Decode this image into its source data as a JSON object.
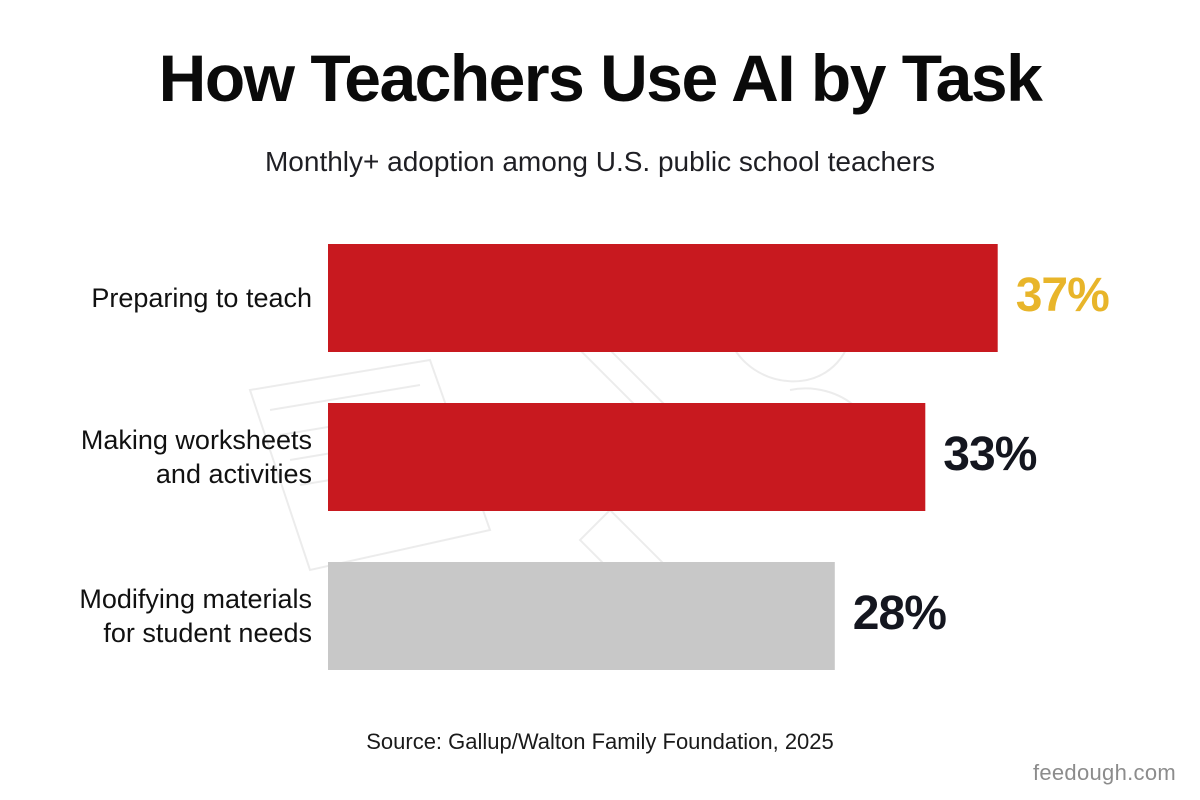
{
  "chart_data": {
    "type": "bar",
    "orientation": "horizontal",
    "title": "How Teachers Use AI by Task",
    "subtitle": "Monthly+ adoption among U.S. public school teachers",
    "categories": [
      [
        "Preparing to teach"
      ],
      [
        "Making worksheets",
        "and activities"
      ],
      [
        "Modifying materials",
        "for student needs"
      ]
    ],
    "values": [
      37,
      33,
      28
    ],
    "value_labels": [
      "37%",
      "33%",
      "28%"
    ],
    "bar_colors": [
      "#c8191f",
      "#c8191f",
      "#c8c8c8"
    ],
    "value_label_colors": [
      "#e8b52a",
      "#14161f",
      "#14161f"
    ],
    "grid": false,
    "legend": "none"
  },
  "footer": {
    "source": "Source: Gallup/Walton Family Foundation, 2025",
    "brand": "feedough.com"
  }
}
